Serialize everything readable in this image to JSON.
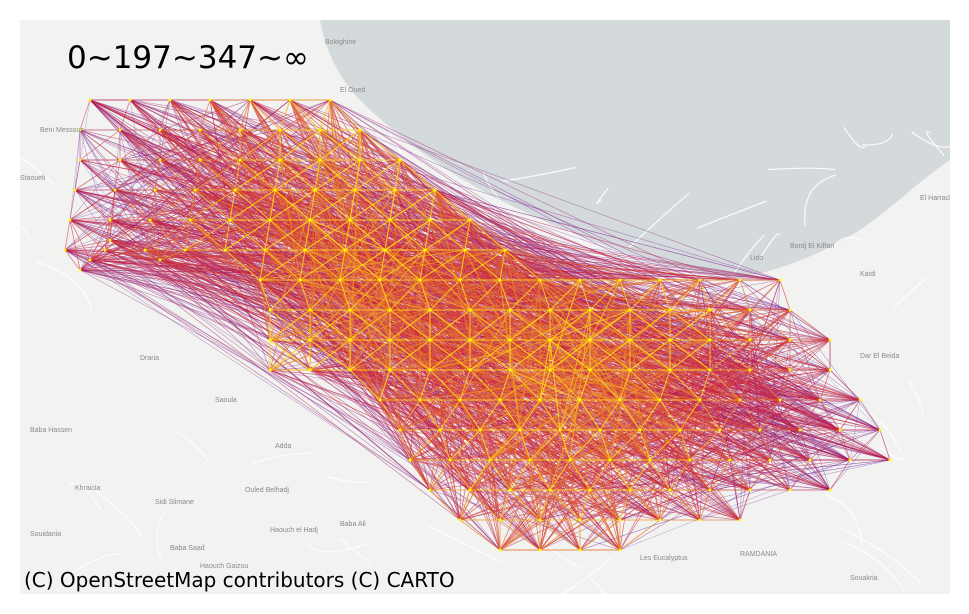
{
  "title": "0~197~347~∞",
  "attribution": "(C) OpenStreetMap contributors (C) CARTO",
  "legend_thresholds": [
    0,
    197,
    347,
    "∞"
  ],
  "colors": {
    "land": "#f2f2f0",
    "sea": "#d4d9dc",
    "road": "#ffffff",
    "low": "#1e1ee6",
    "mid": "#cc1a3a",
    "high": "#ffd21a",
    "top": "#ffff00"
  },
  "place_labels": [
    "Bologhine",
    "El Oued",
    "Beni Messous",
    "Staoueli",
    "Bordj El Kiffan",
    "Lido",
    "Kaidi",
    "Dar El Beida",
    "Draria",
    "Saoula",
    "Baba Hassen",
    "Adda",
    "Khraicia",
    "Ouled Belhadj",
    "Baba Ali",
    "Souidania",
    "Haouch el Hadj",
    "Les Eucalyptus",
    "RAMDANIA",
    "Sidi Slimane",
    "Haouch Gaizou",
    "Baba Saad",
    "El Harrach",
    "Souakria"
  ]
}
